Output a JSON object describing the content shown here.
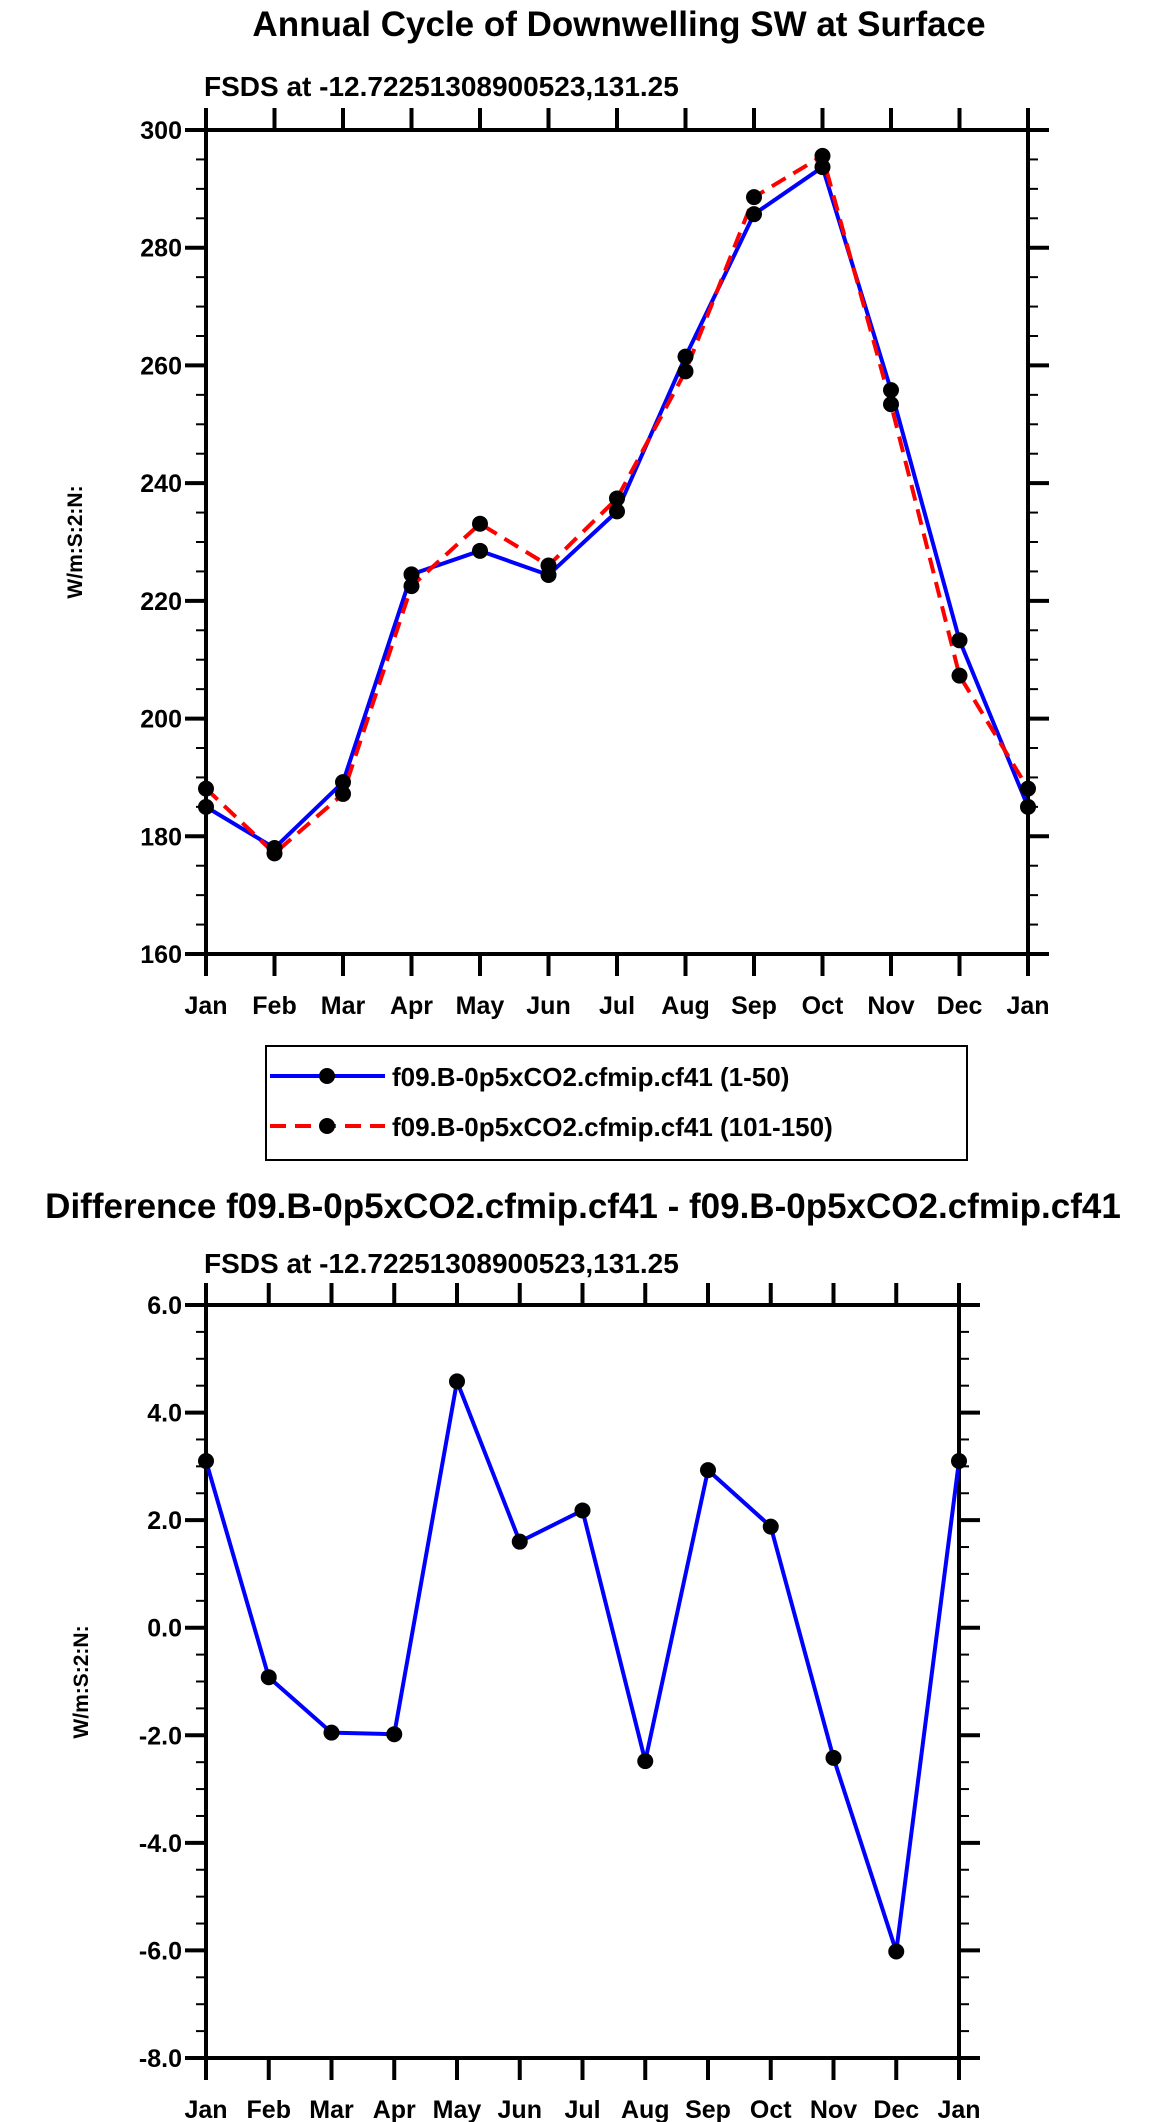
{
  "chart_data": [
    {
      "type": "line",
      "title": "Annual Cycle of Downwelling SW at Surface",
      "subtitle": "FSDS at -12.72251308900523,131.25",
      "xlabel": "",
      "ylabel": "W/m:S:2:N:",
      "categories": [
        "Jan",
        "Feb",
        "Mar",
        "Apr",
        "May",
        "Jun",
        "Jul",
        "Aug",
        "Sep",
        "Oct",
        "Nov",
        "Dec",
        "Jan"
      ],
      "ylim": [
        160,
        300
      ],
      "yticks": [
        160,
        180,
        200,
        220,
        240,
        260,
        280,
        300
      ],
      "ytick_labels": [
        "160",
        "180",
        "200",
        "220",
        "240",
        "260",
        "280",
        "300"
      ],
      "yminor_step": 5,
      "grid": false,
      "legend_position": "below",
      "series": [
        {
          "name": "f09.B-0p5xCO2.cfmip.cf41 (1-50)",
          "color": "#0000ff",
          "dash": "solid",
          "values": [
            185.0,
            178.0,
            189.2,
            224.5,
            228.5,
            224.4,
            235.2,
            261.5,
            285.7,
            293.7,
            255.8,
            213.3,
            185.0
          ]
        },
        {
          "name": "f09.B-0p5xCO2.cfmip.cf41 (101-150)",
          "color": "#ff0000",
          "dash": "dashed",
          "values": [
            188.1,
            177.1,
            187.2,
            222.5,
            233.1,
            226.0,
            237.4,
            259.0,
            288.6,
            295.6,
            253.4,
            207.3,
            188.1
          ]
        }
      ]
    },
    {
      "type": "line",
      "title": "Difference f09.B-0p5xCO2.cfmip.cf41 - f09.B-0p5xCO2.cfmip.cf41",
      "subtitle": "FSDS at -12.72251308900523,131.25",
      "xlabel": "",
      "ylabel": "W/m:S:2:N:",
      "categories": [
        "Jan",
        "Feb",
        "Mar",
        "Apr",
        "May",
        "Jun",
        "Jul",
        "Aug",
        "Sep",
        "Oct",
        "Nov",
        "Dec",
        "Jan"
      ],
      "ylim": [
        -8,
        6
      ],
      "yticks": [
        -8,
        -6,
        -4,
        -2,
        0,
        2,
        4,
        6
      ],
      "ytick_labels": [
        "-8.0",
        "-6.0",
        "-4.0",
        "-2.0",
        "0.0",
        "2.0",
        "4.0",
        "6.0"
      ],
      "yminor_step": 0.5,
      "grid": false,
      "series": [
        {
          "name": "Difference",
          "color": "#0000ff",
          "dash": "solid",
          "values": [
            3.1,
            -0.92,
            -1.95,
            -1.98,
            4.58,
            1.6,
            2.18,
            -2.48,
            2.93,
            1.88,
            -2.42,
            -6.02,
            3.1
          ]
        }
      ]
    }
  ]
}
